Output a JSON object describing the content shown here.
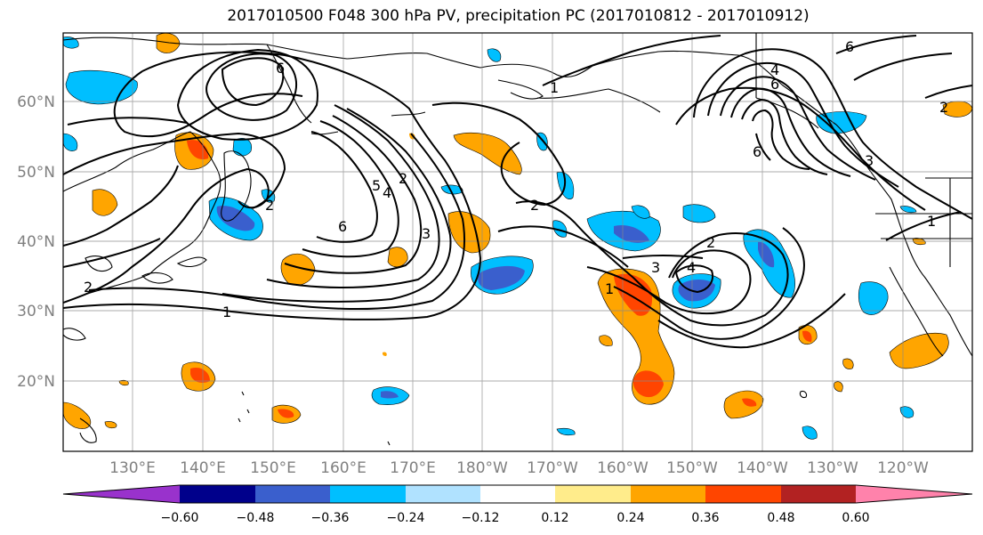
{
  "title": "2017010500 F048 300 hPa PV, precipitation PC (2017010812 - 2017010912)",
  "lat_labels": [
    "60°N",
    "50°N",
    "40°N",
    "30°N",
    "20°N"
  ],
  "lon_labels": [
    "130°E",
    "140°E",
    "150°E",
    "160°E",
    "170°E",
    "180°W",
    "170°W",
    "160°W",
    "150°W",
    "140°W",
    "130°W",
    "120°W"
  ],
  "colorbar": {
    "colors": [
      "#9932cc",
      "#00008b",
      "#3a5fcd",
      "#00bfff",
      "#b0e2ff",
      "#ffffff",
      "#ffec8b",
      "#ffa500",
      "#ff4500",
      "#b22222",
      "#ff82ab"
    ],
    "labels": [
      "−0.60",
      "−0.48",
      "−0.36",
      "−0.24",
      "−0.12",
      "0.12",
      "0.24",
      "0.36",
      "0.48",
      "0.60"
    ]
  },
  "contour_labels": [
    "6",
    "5",
    "4",
    "2",
    "3",
    "6",
    "1",
    "2",
    "2",
    "3",
    "4",
    "1",
    "2",
    "1",
    "6",
    "6",
    "4",
    "2",
    "3",
    "2",
    "1",
    "6"
  ]
}
